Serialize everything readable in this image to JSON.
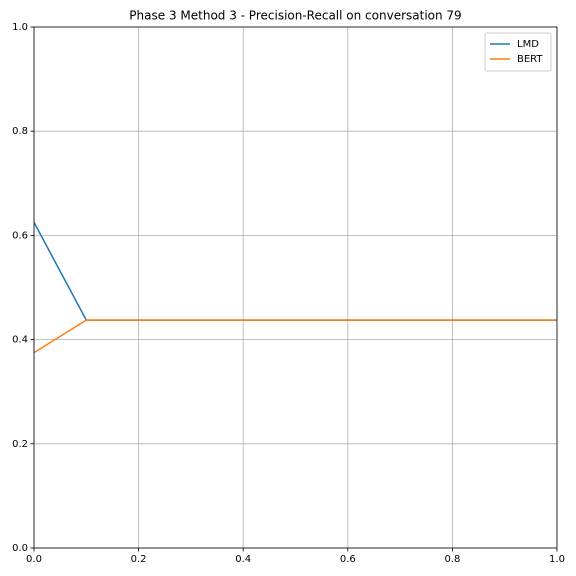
{
  "chart_data": {
    "type": "line",
    "title": "Phase 3 Method 3 - Precision-Recall on conversation 79",
    "x": [
      0,
      0.1,
      1
    ],
    "series": [
      {
        "name": "LMD",
        "color": "#1f77b4",
        "values": [
          0.625,
          0.4375,
          0.4375
        ]
      },
      {
        "name": "BERT",
        "color": "#ff7f0e",
        "values": [
          0.375,
          0.4375,
          0.4375
        ]
      }
    ],
    "xlim": [
      0,
      1
    ],
    "ylim": [
      0,
      1
    ],
    "xticks": [
      {
        "value": 0,
        "label": "0.0"
      },
      0.2,
      0.4,
      0.6,
      0.8,
      {
        "value": 1,
        "label": "1.0"
      }
    ],
    "yticks": [
      {
        "value": 0,
        "label": "0.0"
      },
      0.2,
      0.4,
      0.6,
      0.8,
      {
        "value": 1,
        "label": "1.0"
      }
    ],
    "grid": true,
    "legend": "upper-right"
  }
}
